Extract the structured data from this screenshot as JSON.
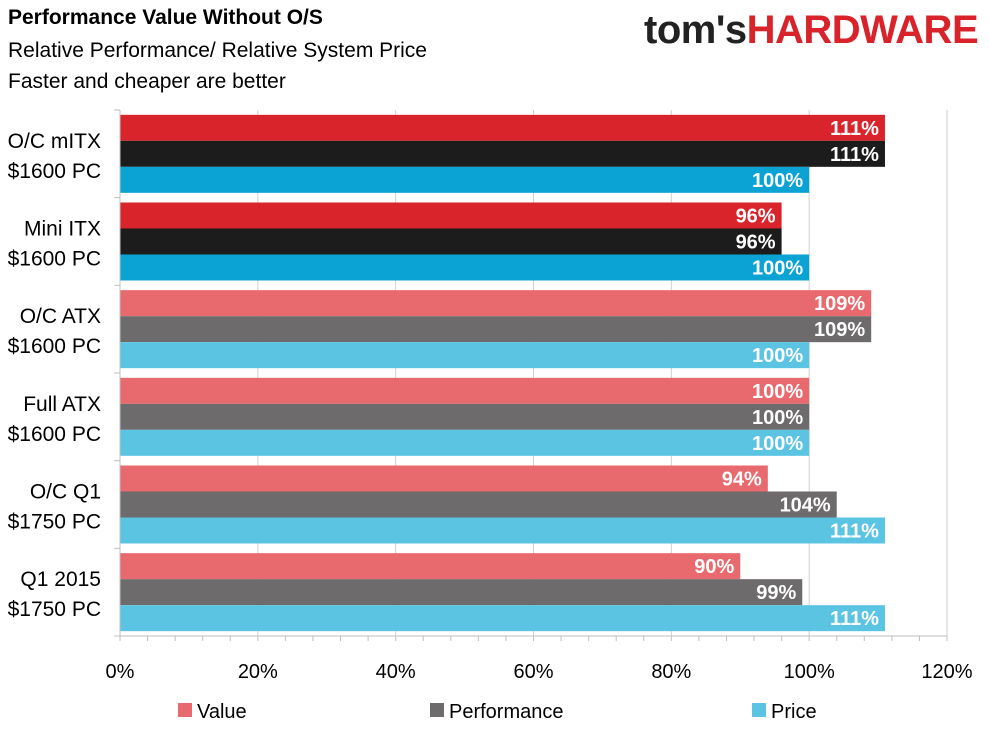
{
  "header": {
    "title": "Performance Value Without O/S",
    "subtitle": "Relative Performance/ Relative System Price",
    "subtitle2": "Faster and cheaper are better",
    "logo_part1": "tom's",
    "logo_part2": "HARDWARE"
  },
  "chart_data": {
    "type": "bar",
    "orientation": "horizontal",
    "categories": [
      [
        "O/C mITX",
        "$1600 PC"
      ],
      [
        "Mini ITX",
        "$1600 PC"
      ],
      [
        "O/C ATX",
        "$1600 PC"
      ],
      [
        "Full ATX",
        "$1600 PC"
      ],
      [
        "O/C Q1",
        "$1750 PC"
      ],
      [
        "Q1 2015",
        "$1750 PC"
      ]
    ],
    "series": [
      {
        "name": "Value",
        "values": [
          111,
          96,
          109,
          100,
          94,
          90
        ],
        "labels": [
          "111%",
          "96%",
          "109%",
          "100%",
          "94%",
          "90%"
        ]
      },
      {
        "name": "Performance",
        "values": [
          111,
          96,
          109,
          100,
          104,
          99
        ],
        "labels": [
          "111%",
          "96%",
          "109%",
          "100%",
          "104%",
          "99%"
        ]
      },
      {
        "name": "Price",
        "values": [
          100,
          100,
          100,
          100,
          111,
          111
        ],
        "labels": [
          "100%",
          "100%",
          "100%",
          "100%",
          "111%",
          "111%"
        ]
      }
    ],
    "highlighted_categories": [
      0,
      1
    ],
    "colors": {
      "highlight": [
        "#d9242b",
        "#1c1c1c",
        "#0aa3d3"
      ],
      "normal": [
        "#e8696e",
        "#6d6b6b",
        "#5bc4e3"
      ]
    },
    "xlim": [
      0,
      120
    ],
    "xticks": [
      "0%",
      "20%",
      "40%",
      "60%",
      "80%",
      "100%",
      "120%"
    ],
    "legend_position": "bottom",
    "grid": true
  }
}
